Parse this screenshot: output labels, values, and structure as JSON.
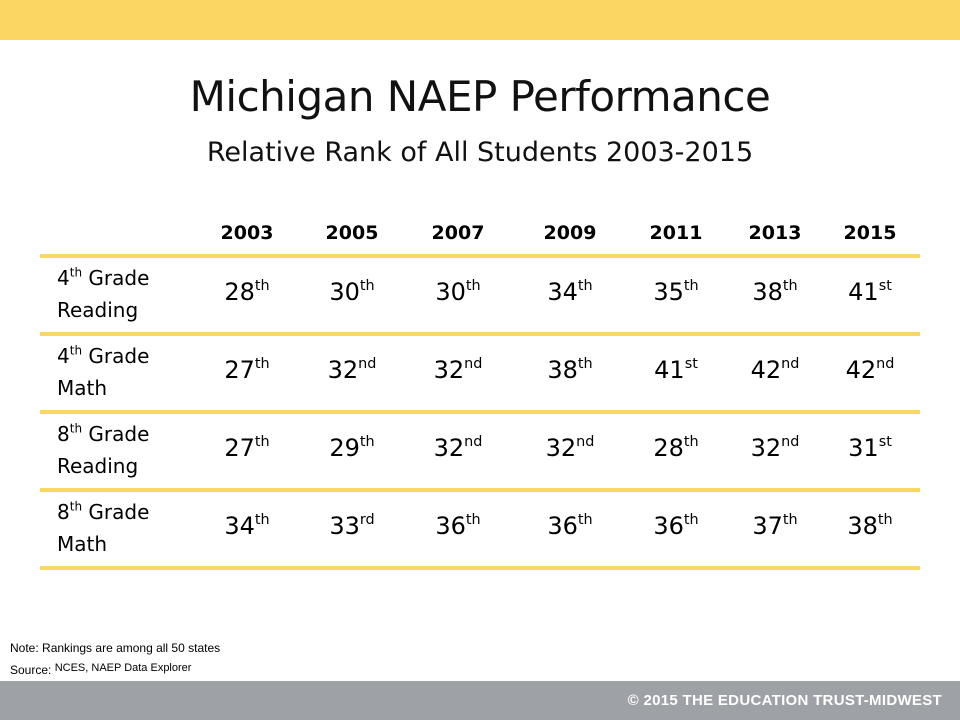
{
  "slide": {
    "title": "Michigan NAEP Performance",
    "subtitle": "Relative Rank of All Students 2003-2015",
    "accent_color": "#fbd662",
    "footer_color": "#9ea2a6"
  },
  "chart_data": {
    "type": "table",
    "columns": [
      "2003",
      "2005",
      "2007",
      "2009",
      "2011",
      "2013",
      "2015"
    ],
    "rows": [
      {
        "label_ord": "4",
        "label_sup": "th",
        "label_rest": "Grade",
        "label_line2": "Reading",
        "values": [
          {
            "n": "28",
            "s": "th"
          },
          {
            "n": "30",
            "s": "th"
          },
          {
            "n": "30",
            "s": "th"
          },
          {
            "n": "34",
            "s": "th"
          },
          {
            "n": "35",
            "s": "th"
          },
          {
            "n": "38",
            "s": "th"
          },
          {
            "n": "41",
            "s": "st"
          }
        ]
      },
      {
        "label_ord": "4",
        "label_sup": "th",
        "label_rest": "Grade",
        "label_line2": "Math",
        "values": [
          {
            "n": "27",
            "s": "th"
          },
          {
            "n": "32",
            "s": "nd"
          },
          {
            "n": "32",
            "s": "nd"
          },
          {
            "n": "38",
            "s": "th"
          },
          {
            "n": "41",
            "s": "st"
          },
          {
            "n": "42",
            "s": "nd"
          },
          {
            "n": "42",
            "s": "nd"
          }
        ]
      },
      {
        "label_ord": "8",
        "label_sup": "th",
        "label_rest": "Grade",
        "label_line2": "Reading",
        "values": [
          {
            "n": "27",
            "s": "th"
          },
          {
            "n": "29",
            "s": "th"
          },
          {
            "n": "32",
            "s": "nd"
          },
          {
            "n": "32",
            "s": "nd"
          },
          {
            "n": "28",
            "s": "th"
          },
          {
            "n": "32",
            "s": "nd"
          },
          {
            "n": "31",
            "s": "st"
          }
        ]
      },
      {
        "label_ord": "8",
        "label_sup": "th",
        "label_rest": "Grade",
        "label_line2": "Math",
        "values": [
          {
            "n": "34",
            "s": "th"
          },
          {
            "n": "33",
            "s": "rd"
          },
          {
            "n": "36",
            "s": "th"
          },
          {
            "n": "36",
            "s": "th"
          },
          {
            "n": "36",
            "s": "th"
          },
          {
            "n": "37",
            "s": "th"
          },
          {
            "n": "38",
            "s": "th"
          }
        ]
      }
    ]
  },
  "notes": {
    "note_label": "Note:",
    "note_text": "Rankings are among all 50 states",
    "source_label": "Source:",
    "source_text": "NCES, NAEP Data Explorer"
  },
  "footer": {
    "copyright": "© 2015 THE EDUCATION TRUST-MIDWEST"
  }
}
